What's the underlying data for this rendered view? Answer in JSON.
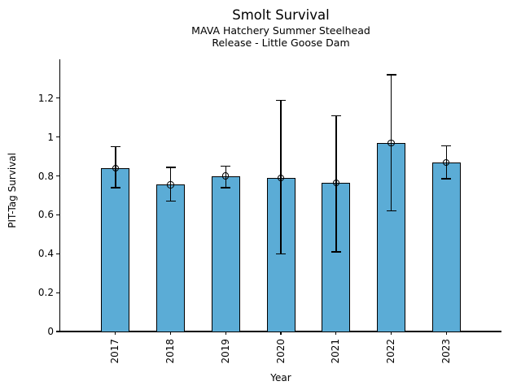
{
  "chart_data": {
    "type": "bar",
    "title": "Smolt Survival",
    "subtitle_lines": [
      "MAVA Hatchery Summer Steelhead",
      "Release - Little Goose Dam"
    ],
    "xlabel": "Year",
    "ylabel": "PIT-Tag Survival",
    "categories": [
      "2017",
      "2018",
      "2019",
      "2020",
      "2021",
      "2022",
      "2023"
    ],
    "values": [
      0.84,
      0.755,
      0.8,
      0.79,
      0.765,
      0.97,
      0.87
    ],
    "error_low": [
      0.74,
      0.67,
      0.74,
      0.4,
      0.41,
      0.62,
      0.785
    ],
    "error_high": [
      0.95,
      0.845,
      0.85,
      1.19,
      1.11,
      1.32,
      0.955
    ],
    "ylim": [
      0,
      1.4
    ],
    "yticks": [
      0,
      0.2,
      0.4,
      0.6,
      0.8,
      1.0,
      1.2
    ],
    "ytick_labels": [
      "0",
      "0.2",
      "0.4",
      "0.6",
      "0.8",
      "1",
      "1.2"
    ],
    "bar_color": "#5BACD6",
    "bar_edge_color": "#000000",
    "errorbar_color": "#000000",
    "marker": "open-circle",
    "grid": false,
    "legend": null,
    "spines": [
      "left",
      "bottom"
    ]
  }
}
